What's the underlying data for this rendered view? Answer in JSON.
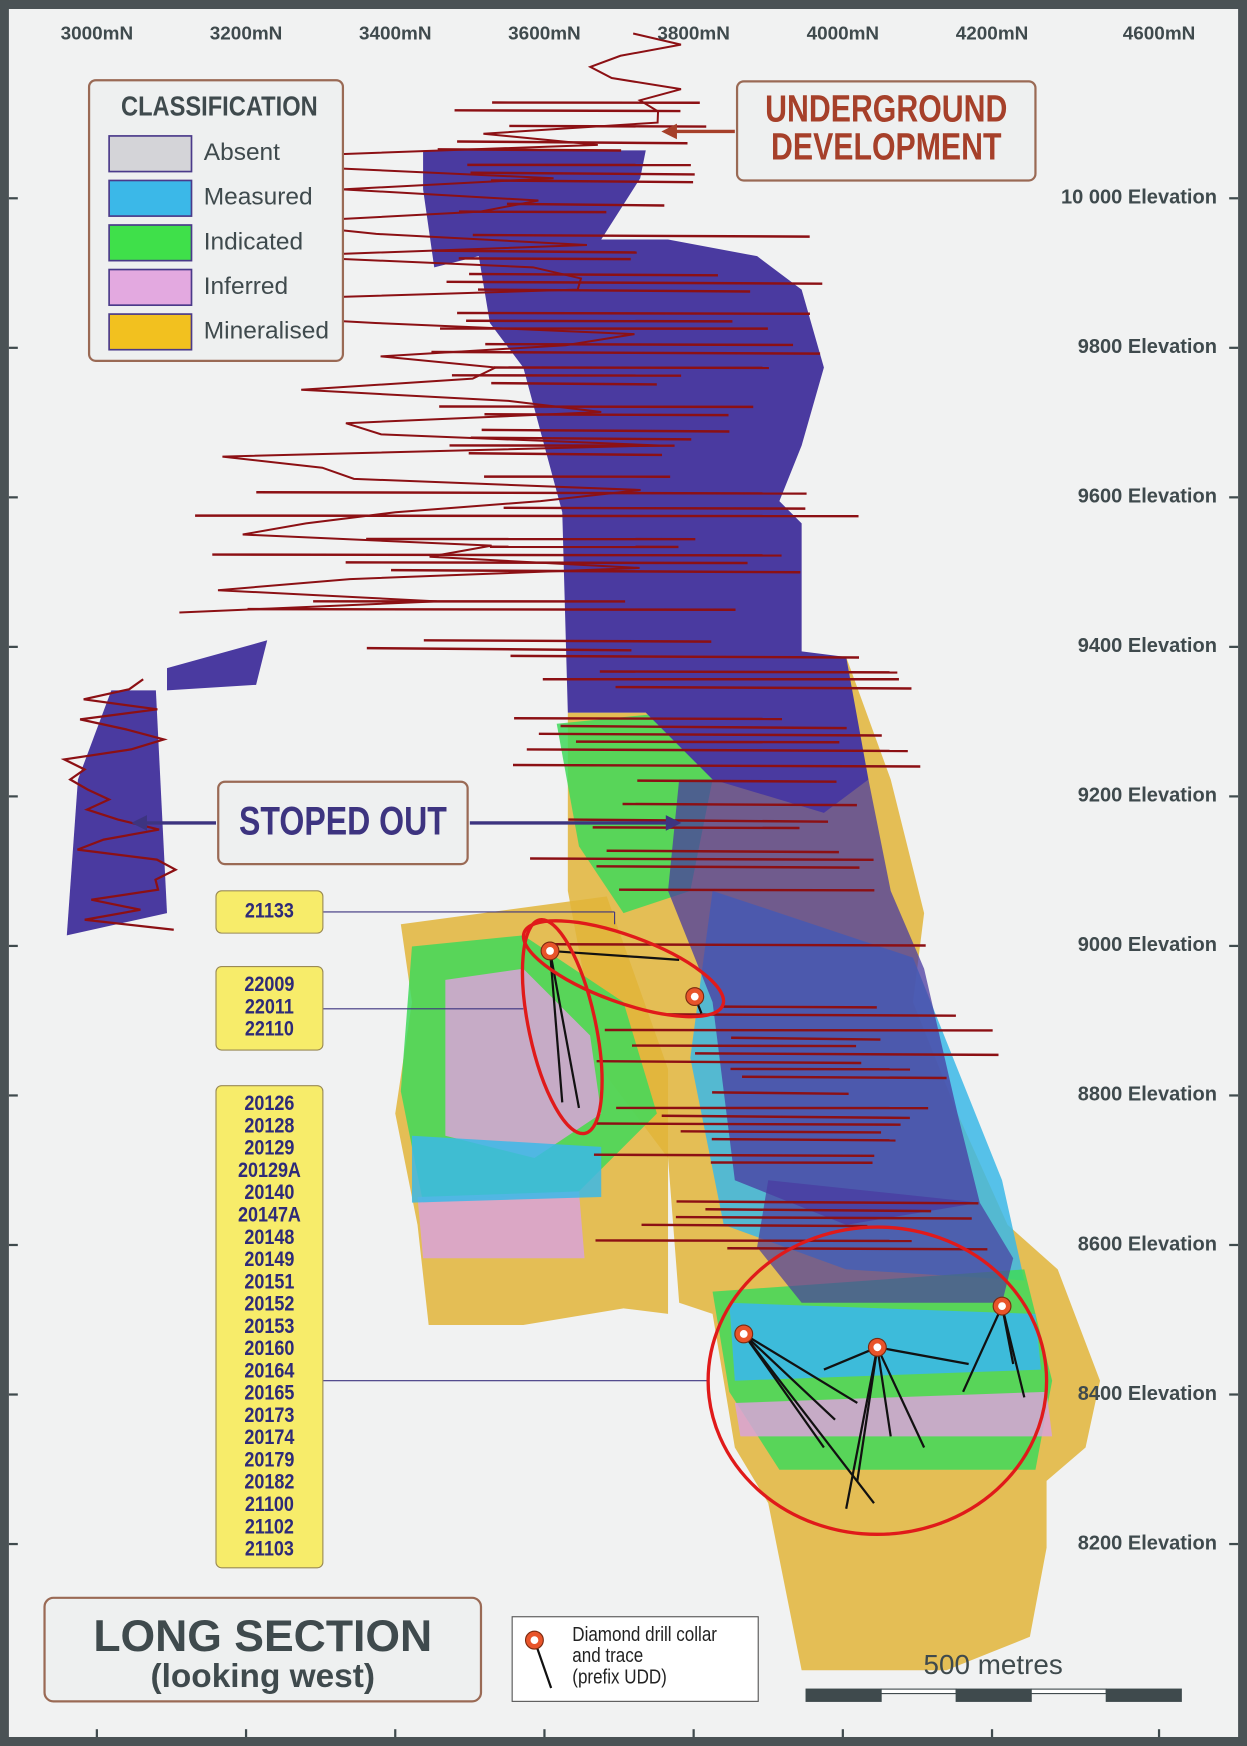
{
  "top_axis": {
    "labels": [
      "3000mN",
      "3200mN",
      "3400mN",
      "3600mN",
      "3800mN",
      "4000mN",
      "4200mN",
      "4600mN"
    ]
  },
  "right_axis": {
    "labels": [
      "10 000 Elevation",
      "9800 Elevation",
      "9600 Elevation",
      "9400 Elevation",
      "9200 Elevation",
      "9000 Elevation",
      "8800 Elevation",
      "8600 Elevation",
      "8400 Elevation",
      "8200 Elevation"
    ]
  },
  "legend": {
    "title": "CLASSIFICATION",
    "items": [
      "Absent",
      "Measured",
      "Indicated",
      "Inferred",
      "Mineralised"
    ]
  },
  "callouts": {
    "underground": [
      "UNDERGROUND",
      "DEVELOPMENT"
    ],
    "stoped_out": "STOPED OUT"
  },
  "drill_hole_groups": [
    [
      "21133"
    ],
    [
      "22009",
      "22011",
      "22110"
    ],
    [
      "20126",
      "20128",
      "20129",
      "20129A",
      "20140",
      "20147A",
      "20148",
      "20149",
      "20151",
      "20152",
      "20153",
      "20160",
      "20164",
      "20165",
      "20173",
      "20174",
      "20179",
      "20182",
      "21100",
      "21102",
      "21103"
    ]
  ],
  "title": {
    "main": "LONG SECTION",
    "sub": "(looking west)"
  },
  "drill_legend": {
    "lines": [
      "Diamond drill collar",
      "and trace",
      "(prefix UDD)"
    ]
  },
  "scale_bar": {
    "label": "500 metres"
  }
}
